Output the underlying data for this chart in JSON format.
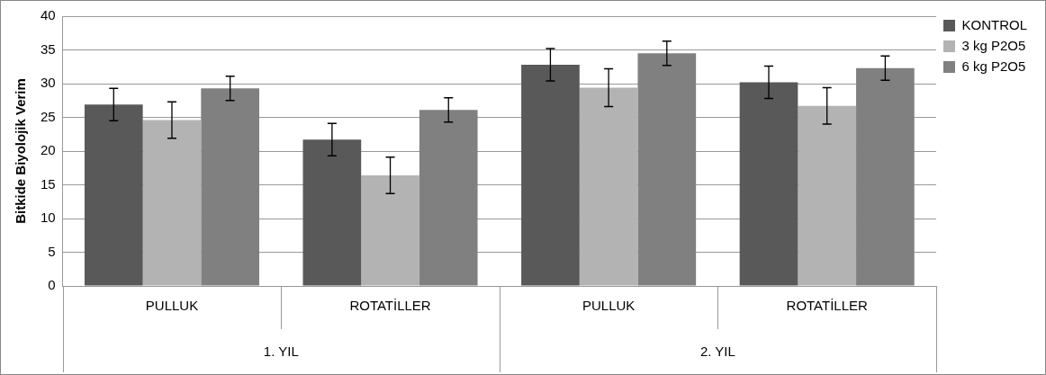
{
  "chart_data": {
    "type": "bar",
    "ylabel": "Bitkide Biyolojik Verim",
    "categories": [
      "PULLUK",
      "ROTATİLLER",
      "PULLUK",
      "ROTATİLLER"
    ],
    "annotations": [
      "1. YIL",
      "2. YIL"
    ],
    "ylim": [
      0,
      40
    ],
    "yticks": [
      0,
      5,
      10,
      15,
      20,
      25,
      30,
      35,
      40
    ],
    "grid": "y",
    "legend": "right",
    "series": [
      {
        "name": "KONTROL",
        "color": "#595959",
        "values": [
          26.9,
          21.7,
          32.8,
          30.2
        ],
        "errors": [
          2.4,
          2.4,
          2.4,
          2.4
        ]
      },
      {
        "name": "3 kg P2O5",
        "color": "#b3b3b3",
        "values": [
          24.6,
          16.4,
          29.4,
          26.7
        ],
        "errors": [
          2.7,
          2.7,
          2.8,
          2.7
        ]
      },
      {
        "name": "6 kg P2O5",
        "color": "#808080",
        "values": [
          29.3,
          26.1,
          34.5,
          32.3
        ],
        "errors": [
          1.8,
          1.8,
          1.8,
          1.8
        ]
      }
    ]
  }
}
